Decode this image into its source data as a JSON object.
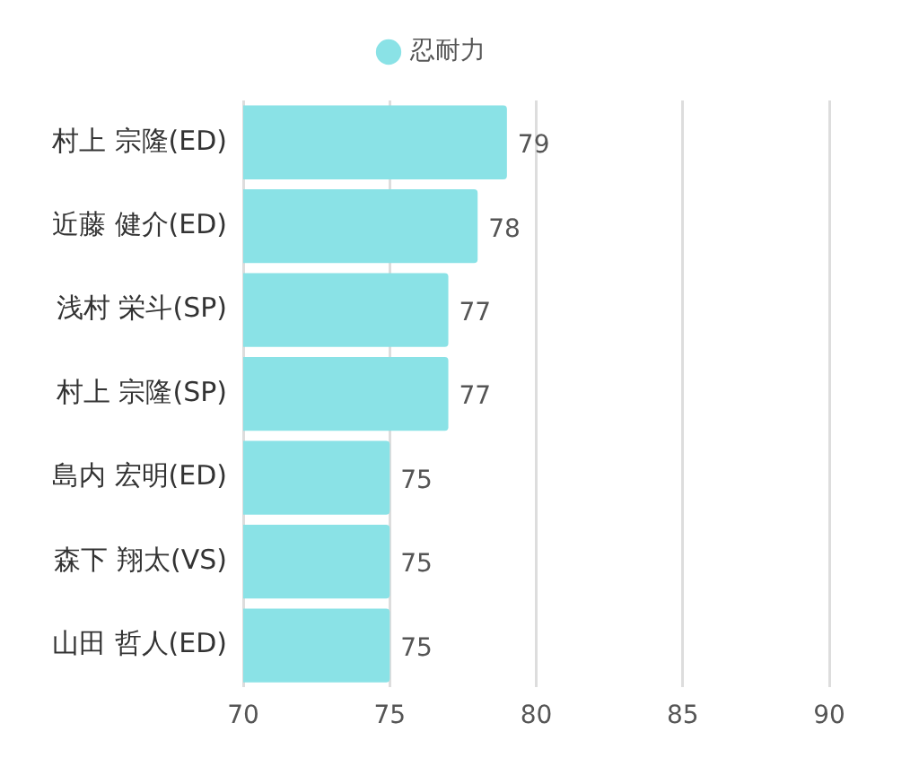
{
  "chart_data": {
    "type": "bar",
    "orientation": "horizontal",
    "categories": [
      "村上 宗隆(ED)",
      "近藤 健介(ED)",
      "浅村 栄斗(SP)",
      "村上 宗隆(SP)",
      "島内 宏明(ED)",
      "森下 翔太(VS)",
      "山田 哲人(ED)"
    ],
    "series": [
      {
        "name": "忍耐力",
        "color": "#8ae2e6",
        "values": [
          79,
          78,
          77,
          77,
          75,
          75,
          75
        ]
      }
    ],
    "xlim": [
      70,
      90
    ],
    "xticks": [
      70,
      75,
      80,
      85,
      90
    ],
    "grid": "x",
    "legend": "top",
    "data_labels": true
  }
}
